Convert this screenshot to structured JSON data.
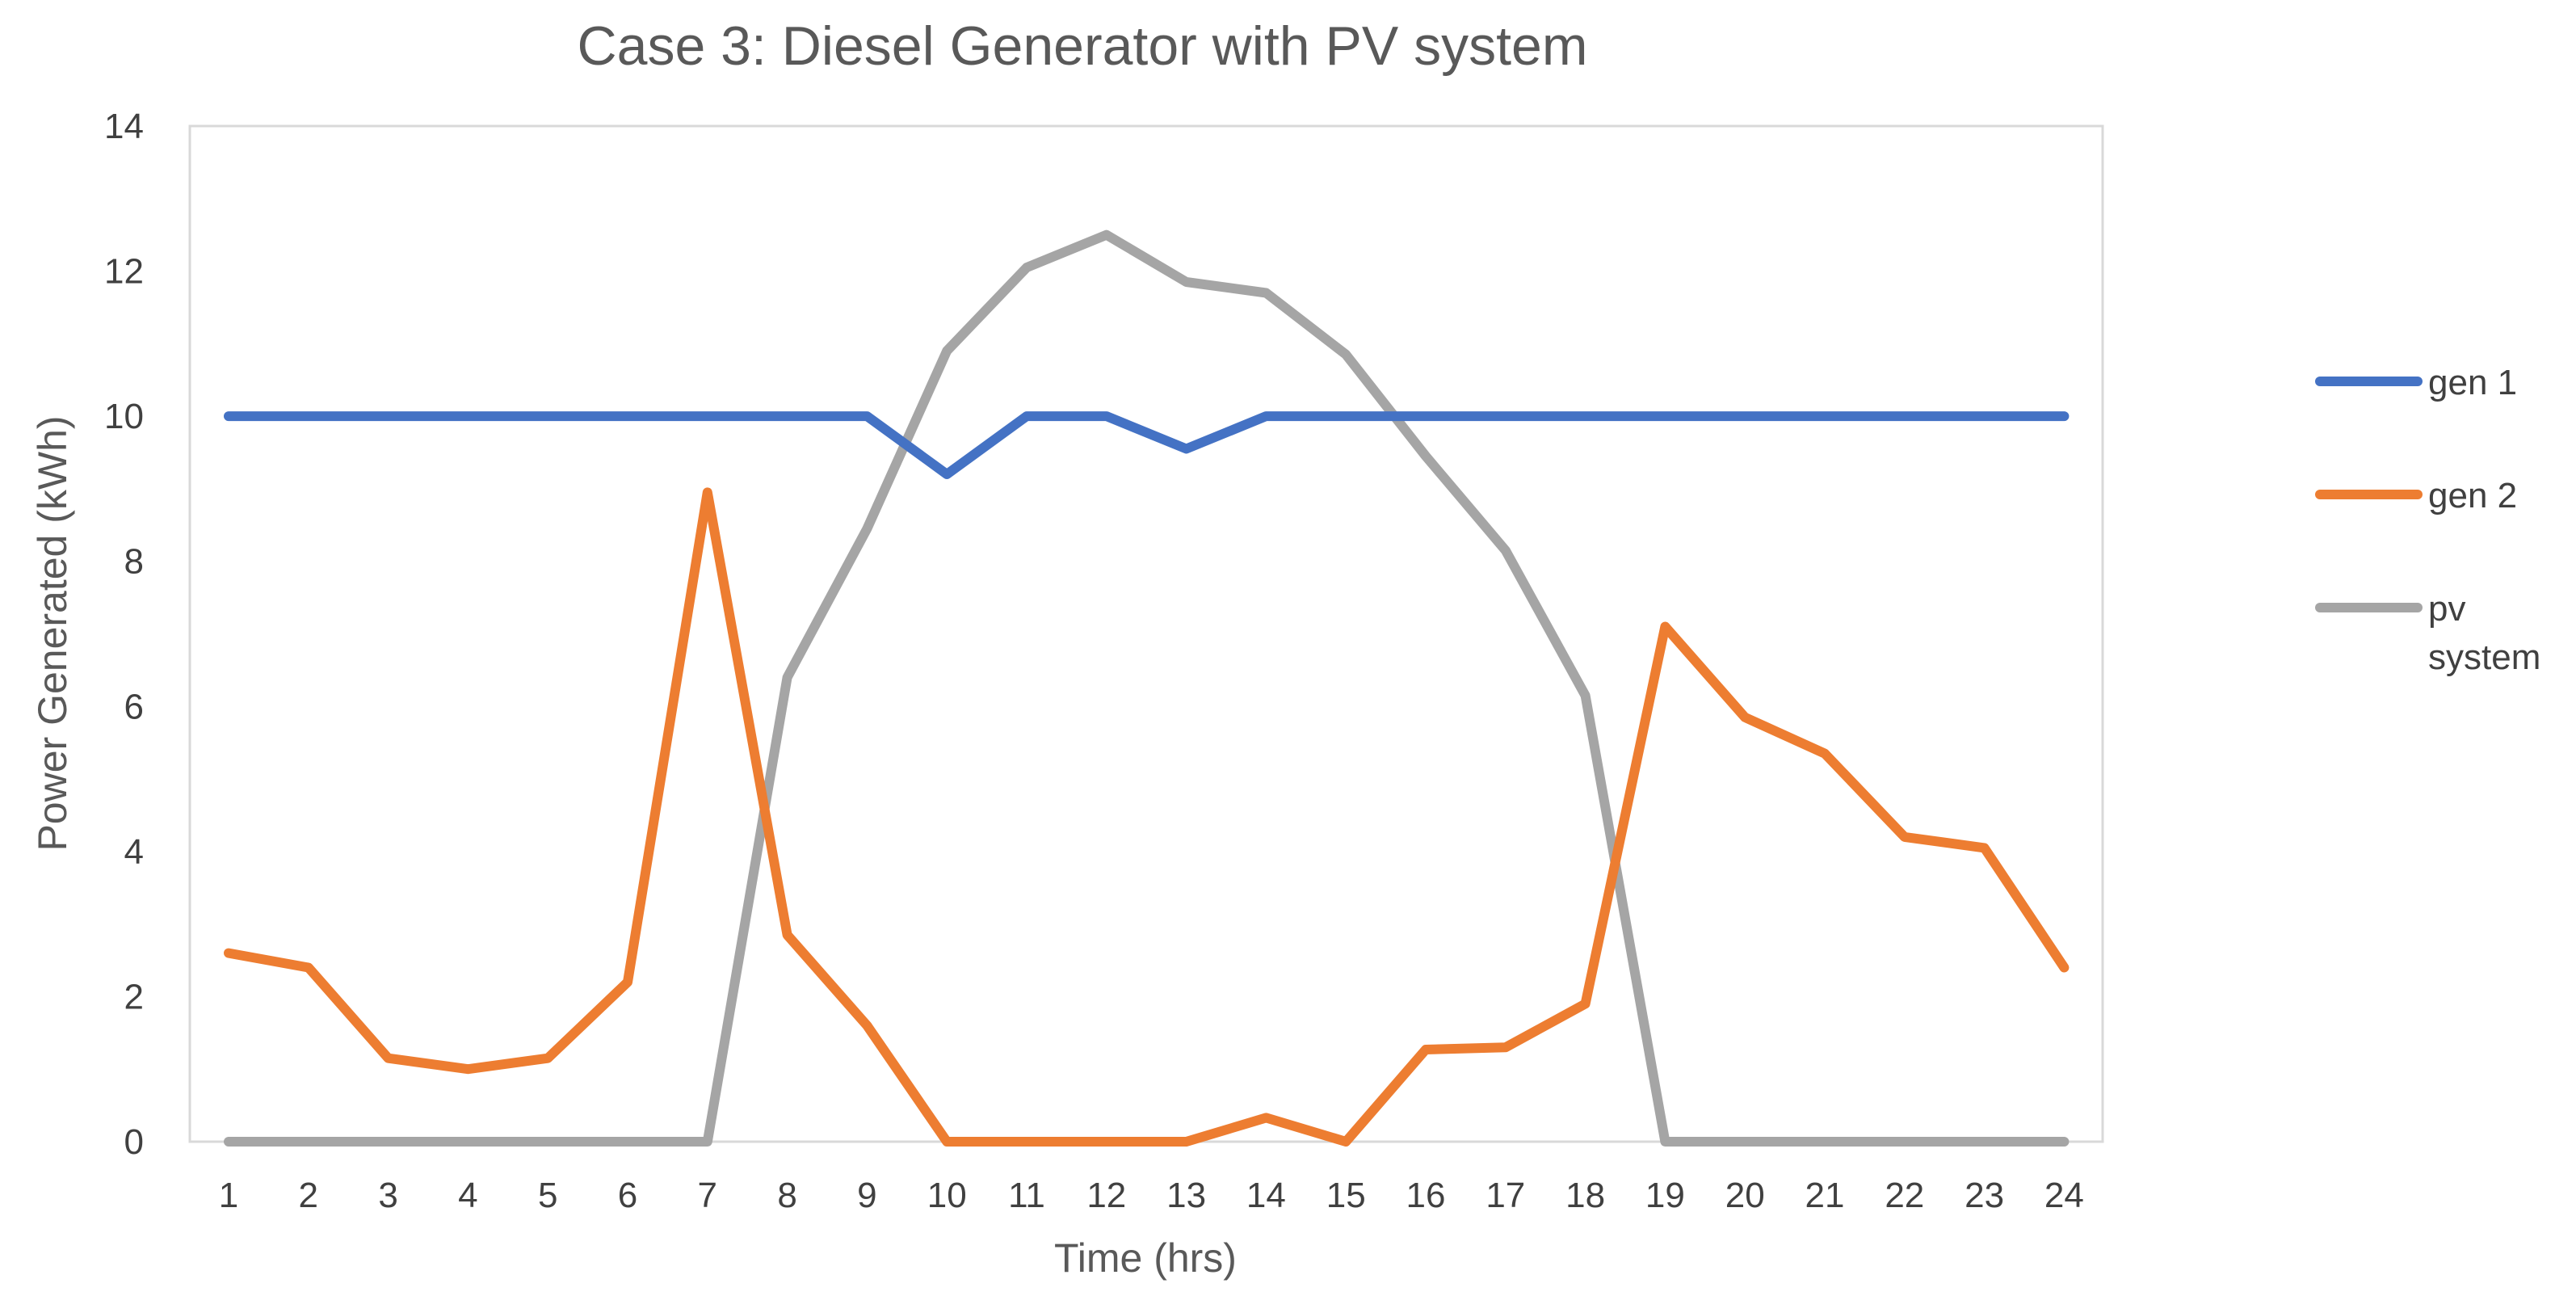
{
  "chart_data": {
    "type": "line",
    "title": "Case 3: Diesel Generator with PV system",
    "xlabel": "Time (hrs)",
    "ylabel": "Power Generated (kWh)",
    "ylim": [
      0,
      14
    ],
    "yticks": [
      0,
      2,
      4,
      6,
      8,
      10,
      12,
      14
    ],
    "grid": false,
    "legend_position": "right",
    "categories": [
      "1",
      "2",
      "3",
      "4",
      "5",
      "6",
      "7",
      "8",
      "9",
      "10",
      "11",
      "12",
      "13",
      "14",
      "15",
      "16",
      "17",
      "18",
      "19",
      "20",
      "21",
      "22",
      "23",
      "24"
    ],
    "series": [
      {
        "name": "gen 1",
        "color": "#4472C4",
        "values": [
          10,
          10,
          10,
          10,
          10,
          10,
          10,
          10,
          10,
          9.2,
          10,
          10,
          9.55,
          10,
          10,
          10,
          10,
          10,
          10,
          10,
          10,
          10,
          10,
          10
        ]
      },
      {
        "name": "gen 2",
        "color": "#ED7D31",
        "values": [
          2.6,
          2.4,
          1.15,
          1.0,
          1.15,
          2.2,
          8.95,
          2.85,
          1.6,
          0,
          0,
          0,
          0,
          0.33,
          0,
          1.27,
          1.3,
          1.9,
          7.1,
          5.85,
          5.35,
          4.2,
          4.05,
          2.4
        ]
      },
      {
        "name": "pv system",
        "legend_lines": [
          "pv",
          "system"
        ],
        "color": "#A5A5A5",
        "values": [
          0,
          0,
          0,
          0,
          0,
          0,
          0,
          6.4,
          8.45,
          10.9,
          12.05,
          12.5,
          11.85,
          11.7,
          10.85,
          9.45,
          8.15,
          6.15,
          0,
          0,
          0,
          0,
          0,
          0
        ]
      }
    ]
  }
}
